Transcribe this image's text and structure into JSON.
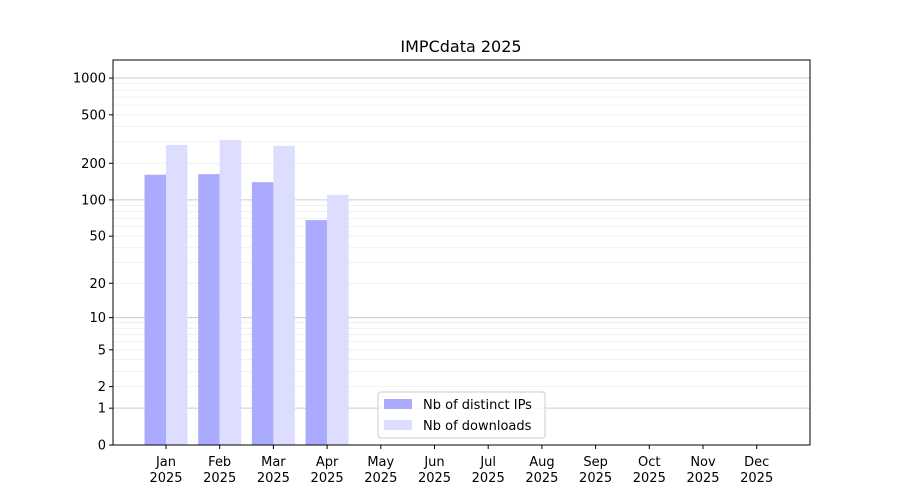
{
  "chart_data": {
    "type": "bar",
    "title": "IMPCdata 2025",
    "xlabel": "",
    "ylabel": "",
    "yscale": "log10(1+y)",
    "ylim": [
      0,
      1300
    ],
    "yticks": [
      0,
      1,
      2,
      5,
      10,
      20,
      50,
      100,
      200,
      500,
      1000
    ],
    "grid": true,
    "legend_position": "bottom-center",
    "categories": [
      "Jan\n2025",
      "Feb\n2025",
      "Mar\n2025",
      "Apr\n2025",
      "May\n2025",
      "Jun\n2025",
      "Jul\n2025",
      "Aug\n2025",
      "Sep\n2025",
      "Oct\n2025",
      "Nov\n2025",
      "Dec\n2025"
    ],
    "series": [
      {
        "name": "Nb of distinct IPs",
        "color": "#aaaaff",
        "values": [
          161,
          163,
          140,
          68,
          0,
          0,
          0,
          0,
          0,
          0,
          0,
          0
        ]
      },
      {
        "name": "Nb of downloads",
        "color": "#ddddff",
        "values": [
          283,
          311,
          278,
          110,
          0,
          0,
          0,
          0,
          0,
          0,
          0,
          0
        ]
      }
    ]
  }
}
